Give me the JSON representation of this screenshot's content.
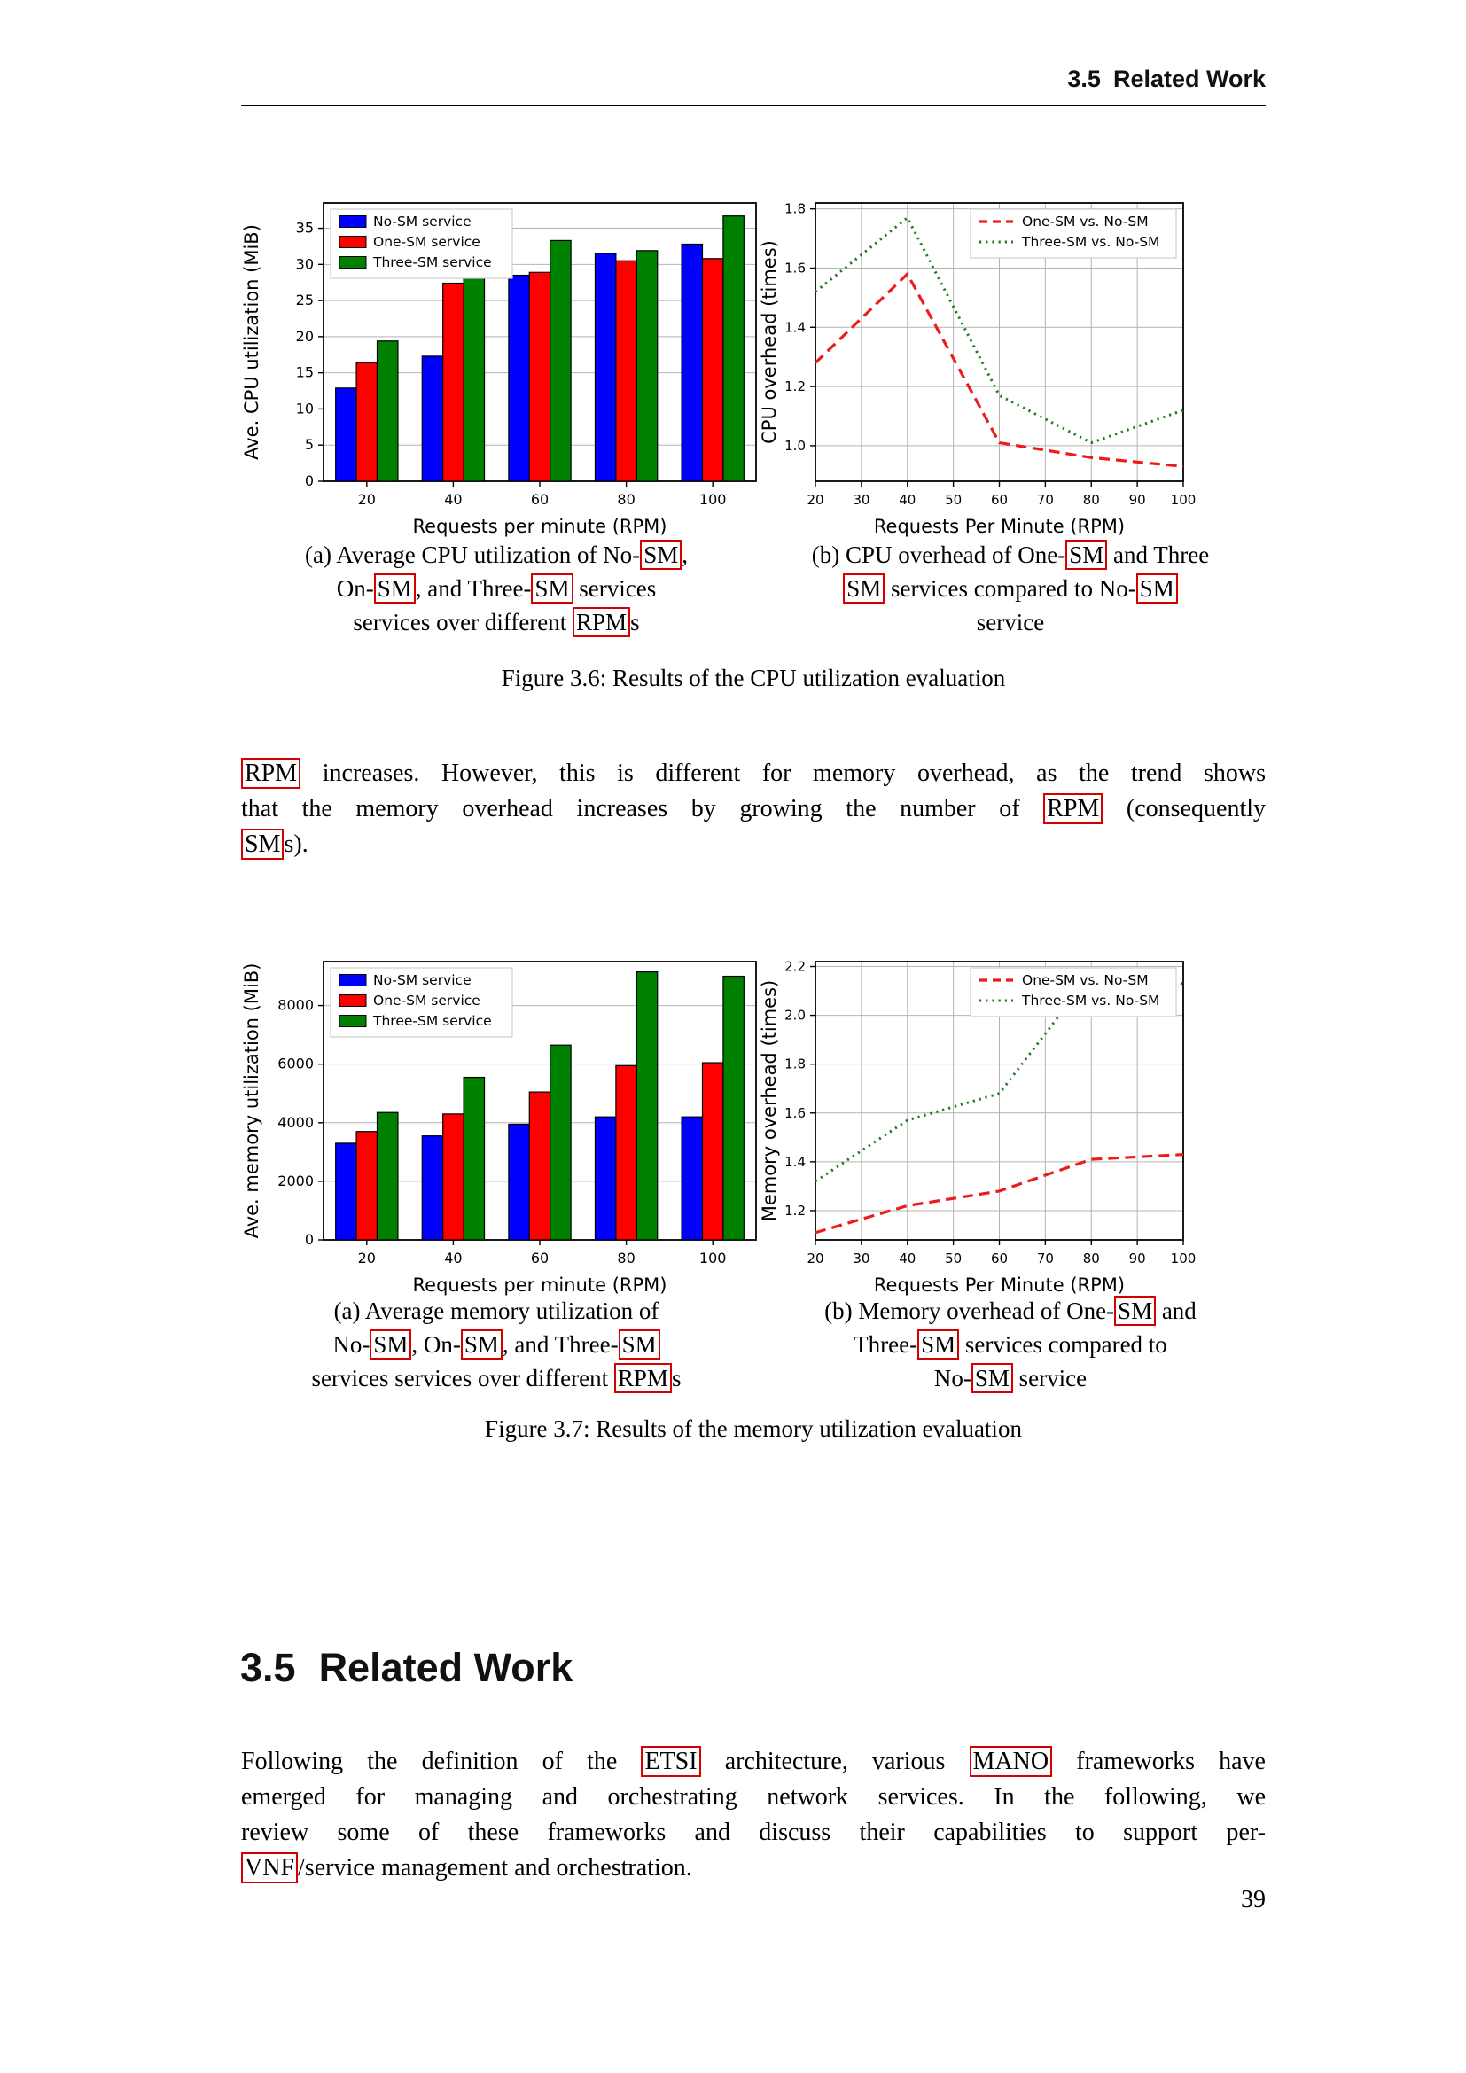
{
  "header": {
    "number": "3.5",
    "title": "Related Work"
  },
  "figure_3_6": {
    "caption_a_lines": [
      [
        {
          "t": "(a) Average CPU utilization of No-"
        },
        {
          "t": "SM",
          "box": true
        },
        {
          "t": ","
        }
      ],
      [
        {
          "t": "On-"
        },
        {
          "t": "SM",
          "box": true
        },
        {
          "t": ", and Three-"
        },
        {
          "t": "SM",
          "box": true
        },
        {
          "t": " services"
        }
      ],
      [
        {
          "t": "services over different "
        },
        {
          "t": "RPM",
          "box": true
        },
        {
          "t": "s"
        }
      ]
    ],
    "caption_b_lines": [
      [
        {
          "t": "(b) CPU overhead of One-"
        },
        {
          "t": "SM",
          "box": true
        },
        {
          "t": " and Three"
        }
      ],
      [
        {
          "t": "SM",
          "box": true
        },
        {
          "t": " services compared to No-"
        },
        {
          "t": "SM",
          "box": true
        }
      ],
      [
        {
          "t": "service"
        }
      ]
    ],
    "caption": "Figure 3.6: Results of the CPU utilization evaluation"
  },
  "paragraph_1_lines": [
    [
      {
        "t": "RPM",
        "box": true
      },
      {
        "t": " increases.  However, this is different for memory overhead, as the trend shows"
      }
    ],
    [
      {
        "t": "that the memory overhead increases by growing the number of "
      },
      {
        "t": "RPM",
        "box": true
      },
      {
        "t": " (consequently"
      }
    ],
    [
      {
        "t": "SM",
        "box": true
      },
      {
        "t": "s)."
      }
    ]
  ],
  "figure_3_7": {
    "caption_a_lines": [
      [
        {
          "t": "(a) Average memory utilization of"
        }
      ],
      [
        {
          "t": "No-"
        },
        {
          "t": "SM",
          "box": true
        },
        {
          "t": ", On-"
        },
        {
          "t": "SM",
          "box": true
        },
        {
          "t": ", and Three-"
        },
        {
          "t": "SM",
          "box": true
        }
      ],
      [
        {
          "t": "services services over different "
        },
        {
          "t": "RPM",
          "box": true
        },
        {
          "t": "s"
        }
      ]
    ],
    "caption_b_lines": [
      [
        {
          "t": "(b) Memory overhead of One-"
        },
        {
          "t": "SM",
          "box": true
        },
        {
          "t": " and"
        }
      ],
      [
        {
          "t": "Three-"
        },
        {
          "t": "SM",
          "box": true
        },
        {
          "t": " services compared to"
        }
      ],
      [
        {
          "t": "No-"
        },
        {
          "t": "SM",
          "box": true
        },
        {
          "t": " service"
        }
      ]
    ],
    "caption": "Figure 3.7: Results of the memory utilization evaluation"
  },
  "section_heading": {
    "number": "3.5",
    "title": "Related Work"
  },
  "paragraph_2_lines": [
    [
      {
        "t": "Following the definition of the "
      },
      {
        "t": "ETSI",
        "box": true
      },
      {
        "t": " architecture, various "
      },
      {
        "t": "MANO",
        "box": true
      },
      {
        "t": " frameworks have"
      }
    ],
    [
      {
        "t": "emerged for managing and orchestrating network services.  In the following, we"
      }
    ],
    [
      {
        "t": "review some of these frameworks and discuss their capabilities to support per-"
      }
    ],
    [
      {
        "t": "VNF",
        "box": true
      },
      {
        "t": "/service management and orchestration."
      }
    ]
  ],
  "page_number": "39",
  "accent_colors": {
    "link_box": "#d60000",
    "bar_blue": "#0000ff",
    "bar_red": "#ff0000",
    "bar_green": "#008000"
  },
  "chart_data": [
    {
      "id": "cpu_utilization",
      "type": "bar",
      "title": "",
      "xlabel": "Requests per minute (RPM)",
      "ylabel": "Ave. CPU utilization (MiB)",
      "categories": [
        "20",
        "40",
        "60",
        "80",
        "100"
      ],
      "series": [
        {
          "name": "No-SM service",
          "color": "#0000ff",
          "style": "solid",
          "values": [
            12.9,
            17.3,
            28.5,
            31.5,
            32.8
          ]
        },
        {
          "name": "One-SM service",
          "color": "#ff0000",
          "style": "solid",
          "values": [
            16.4,
            27.4,
            28.9,
            30.5,
            30.8
          ]
        },
        {
          "name": "Three-SM service",
          "color": "#008000",
          "style": "solid",
          "values": [
            19.4,
            30.6,
            33.3,
            31.9,
            36.7
          ]
        }
      ],
      "ylim": [
        0,
        38.5
      ],
      "yticks": [
        "0",
        "5",
        "10",
        "15",
        "20",
        "25",
        "30",
        "35"
      ],
      "grid": true,
      "legend_position": "upper left"
    },
    {
      "id": "cpu_overhead",
      "type": "line",
      "title": "",
      "xlabel": "Requests Per Minute (RPM)",
      "ylabel": "CPU overhead (times)",
      "x": [
        20,
        40,
        60,
        80,
        100
      ],
      "xlim": [
        20,
        100
      ],
      "xticks": [
        "20",
        "30",
        "40",
        "50",
        "60",
        "70",
        "80",
        "90",
        "100"
      ],
      "series": [
        {
          "name": "One-SM vs. No-SM",
          "color": "#ed1c1c",
          "style": "dashed",
          "values": [
            1.28,
            1.58,
            1.01,
            0.96,
            0.93
          ]
        },
        {
          "name": "Three-SM vs. No-SM",
          "color": "#1f7a1f",
          "style": "dotted",
          "values": [
            1.52,
            1.77,
            1.17,
            1.01,
            1.12
          ]
        }
      ],
      "ylim": [
        0.88,
        1.82
      ],
      "yticks": [
        "1.0",
        "1.2",
        "1.4",
        "1.6",
        "1.8"
      ],
      "grid": true,
      "legend_position": "upper right"
    },
    {
      "id": "memory_utilization",
      "type": "bar",
      "title": "",
      "xlabel": "Requests per minute (RPM)",
      "ylabel": "Ave. memory utilization (MiB)",
      "categories": [
        "20",
        "40",
        "60",
        "80",
        "100"
      ],
      "series": [
        {
          "name": "No-SM service",
          "color": "#0000ff",
          "style": "solid",
          "values": [
            3300,
            3550,
            3950,
            4200,
            4200
          ]
        },
        {
          "name": "One-SM service",
          "color": "#ff0000",
          "style": "solid",
          "values": [
            3700,
            4300,
            5050,
            5950,
            6050
          ]
        },
        {
          "name": "Three-SM service",
          "color": "#008000",
          "style": "solid",
          "values": [
            4350,
            5550,
            6650,
            9150,
            9000
          ]
        }
      ],
      "ylim": [
        0,
        9500
      ],
      "yticks": [
        "0",
        "2000",
        "4000",
        "6000",
        "8000"
      ],
      "grid": true,
      "legend_position": "upper left"
    },
    {
      "id": "memory_overhead",
      "type": "line",
      "title": "",
      "xlabel": "Requests Per Minute (RPM)",
      "ylabel": "Memory overhead (times)",
      "x": [
        20,
        40,
        60,
        80,
        100
      ],
      "xlim": [
        20,
        100
      ],
      "xticks": [
        "20",
        "30",
        "40",
        "50",
        "60",
        "70",
        "80",
        "90",
        "100"
      ],
      "series": [
        {
          "name": "One-SM vs. No-SM",
          "color": "#ed1c1c",
          "style": "dashed",
          "values": [
            1.11,
            1.22,
            1.28,
            1.41,
            1.43
          ]
        },
        {
          "name": "Three-SM vs. No-SM",
          "color": "#1f7a1f",
          "style": "dotted",
          "values": [
            1.32,
            1.57,
            1.68,
            2.17,
            2.13
          ]
        }
      ],
      "ylim": [
        1.08,
        2.22
      ],
      "yticks": [
        "1.2",
        "1.4",
        "1.6",
        "1.8",
        "2.0",
        "2.2"
      ],
      "grid": true,
      "legend_position": "upper right"
    }
  ]
}
